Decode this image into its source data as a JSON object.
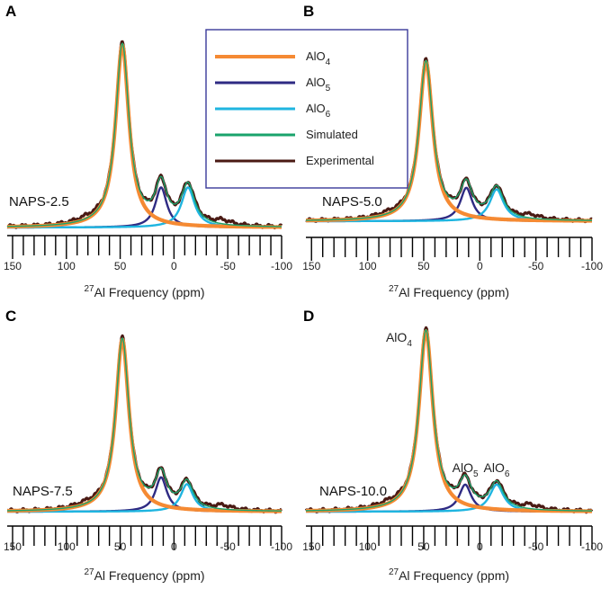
{
  "colors": {
    "AlO4": "#f58a33",
    "AlO5": "#2e2a83",
    "AlO6": "#1fb5e0",
    "Simulated": "#1aa36b",
    "Experimental": "#4a1a14",
    "legend_border": "#3a3a9a"
  },
  "legend": {
    "entries": [
      {
        "key": "AlO4",
        "main": "AlO",
        "sub": "4"
      },
      {
        "key": "AlO5",
        "main": "AlO",
        "sub": "5"
      },
      {
        "key": "AlO6",
        "main": "AlO",
        "sub": "6"
      },
      {
        "key": "Simulated",
        "main": "Simulated",
        "sub": ""
      },
      {
        "key": "Experimental",
        "main": "Experimental",
        "sub": ""
      }
    ]
  },
  "chart_data": [
    {
      "type": "line",
      "panel": "A",
      "sample": "NAPS-2.5",
      "xlabel_sup": "27",
      "xlabel_main": "Al Frequency (ppm)",
      "xlim": [
        155,
        -100
      ],
      "ticks": [
        150,
        100,
        50,
        0,
        -50,
        -100
      ],
      "ylim": [
        0,
        1.05
      ],
      "components": [
        {
          "name": "AlO4",
          "center": 48,
          "height": 1.0,
          "width": 7.5
        },
        {
          "name": "AlO5",
          "center": 12,
          "height": 0.22,
          "width": 6.5
        },
        {
          "name": "AlO6",
          "center": -13,
          "height": 0.22,
          "width": 7.5
        }
      ],
      "peak_annotations": []
    },
    {
      "type": "line",
      "panel": "B",
      "sample": "NAPS-5.0",
      "xlabel_sup": "27",
      "xlabel_main": "Al Frequency (ppm)",
      "xlim": [
        155,
        -100
      ],
      "ticks": [
        150,
        100,
        50,
        0,
        -50,
        -100
      ],
      "ylim": [
        0,
        1.05
      ],
      "components": [
        {
          "name": "AlO4",
          "center": 48,
          "height": 1.0,
          "width": 7.5
        },
        {
          "name": "AlO5",
          "center": 12,
          "height": 0.21,
          "width": 6.5
        },
        {
          "name": "AlO6",
          "center": -15,
          "height": 0.2,
          "width": 7.5
        }
      ],
      "peak_annotations": []
    },
    {
      "type": "line",
      "panel": "C",
      "sample": "NAPS-7.5",
      "xlabel_sup": "27",
      "xlabel_main": "Al Frequency (ppm)",
      "xlim": [
        155,
        -100
      ],
      "ticks": [
        150,
        100,
        50,
        0,
        -50,
        -100
      ],
      "ylim": [
        0,
        1.05
      ],
      "components": [
        {
          "name": "AlO4",
          "center": 48,
          "height": 1.0,
          "width": 7.5
        },
        {
          "name": "AlO5",
          "center": 12,
          "height": 0.2,
          "width": 6.5
        },
        {
          "name": "AlO6",
          "center": -12,
          "height": 0.16,
          "width": 7.0
        }
      ],
      "peak_annotations": []
    },
    {
      "type": "line",
      "panel": "D",
      "sample": "NAPS-10.0",
      "xlabel_sup": "27",
      "xlabel_main": "Al Frequency (ppm)",
      "xlim": [
        155,
        -100
      ],
      "ticks": [
        150,
        100,
        50,
        0,
        -50,
        -100
      ],
      "ylim": [
        0,
        1.05
      ],
      "components": [
        {
          "name": "AlO4",
          "center": 48,
          "height": 1.0,
          "width": 7.5
        },
        {
          "name": "AlO5",
          "center": 13,
          "height": 0.15,
          "width": 6.5
        },
        {
          "name": "AlO6",
          "center": -15,
          "height": 0.15,
          "width": 7.5
        }
      ],
      "peak_annotations": [
        {
          "component": "AlO4",
          "main": "AlO",
          "sub": "4"
        },
        {
          "component": "AlO5",
          "main": "AlO",
          "sub": "5"
        },
        {
          "component": "AlO6",
          "main": "AlO",
          "sub": "6"
        }
      ]
    }
  ]
}
